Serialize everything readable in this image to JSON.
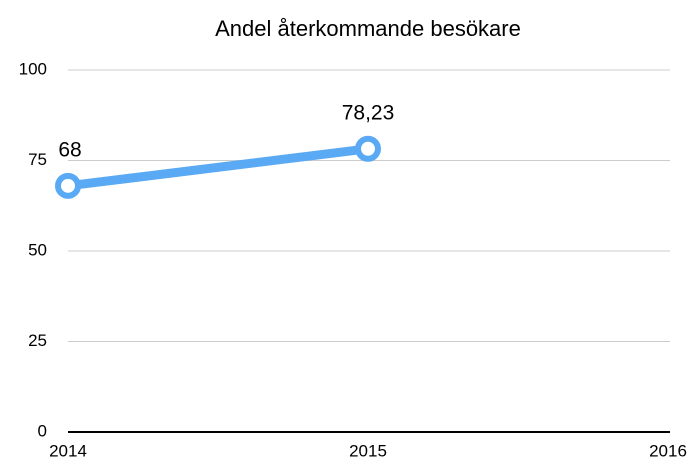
{
  "chart_data": {
    "type": "line",
    "title": "Andel återkommande besökare",
    "categories": [
      "2014",
      "2015",
      "2016"
    ],
    "series": [
      {
        "name": "Andel återkommande besökare",
        "color": "#5aa9f5",
        "values": [
          68,
          78.23,
          null
        ],
        "value_labels": [
          "68",
          "78,23",
          null
        ]
      }
    ],
    "ylim": [
      0,
      100
    ],
    "yticks": [
      0,
      25,
      50,
      75,
      100
    ],
    "grid": true
  }
}
